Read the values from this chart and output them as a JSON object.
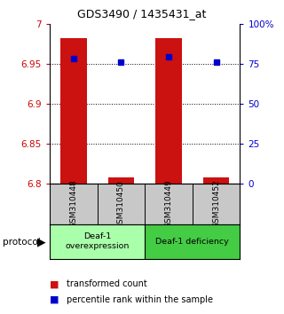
{
  "title": "GDS3490 / 1435431_at",
  "samples": [
    "GSM310448",
    "GSM310450",
    "GSM310449",
    "GSM310452"
  ],
  "red_values": [
    6.982,
    6.808,
    6.982,
    6.808
  ],
  "blue_values": [
    78,
    76,
    79,
    76
  ],
  "ylim_left": [
    6.8,
    7.0
  ],
  "ylim_right": [
    0,
    100
  ],
  "yticks_left": [
    6.8,
    6.85,
    6.9,
    6.95,
    7.0
  ],
  "yticks_right": [
    0,
    25,
    50,
    75,
    100
  ],
  "ytick_labels_left": [
    "6.8",
    "6.85",
    "6.9",
    "6.95",
    "7"
  ],
  "ytick_labels_right": [
    "0",
    "25",
    "50",
    "75",
    "100%"
  ],
  "hlines": [
    6.85,
    6.9,
    6.95
  ],
  "bar_color": "#cc1111",
  "marker_color": "#0000cc",
  "bar_width": 0.55,
  "group1_label": "Deaf-1\noverexpression",
  "group2_label": "Deaf-1 deficiency",
  "group1_color": "#aaffaa",
  "group2_color": "#44cc44",
  "legend_red_label": "transformed count",
  "legend_blue_label": "percentile rank within the sample",
  "protocol_label": "protocol"
}
